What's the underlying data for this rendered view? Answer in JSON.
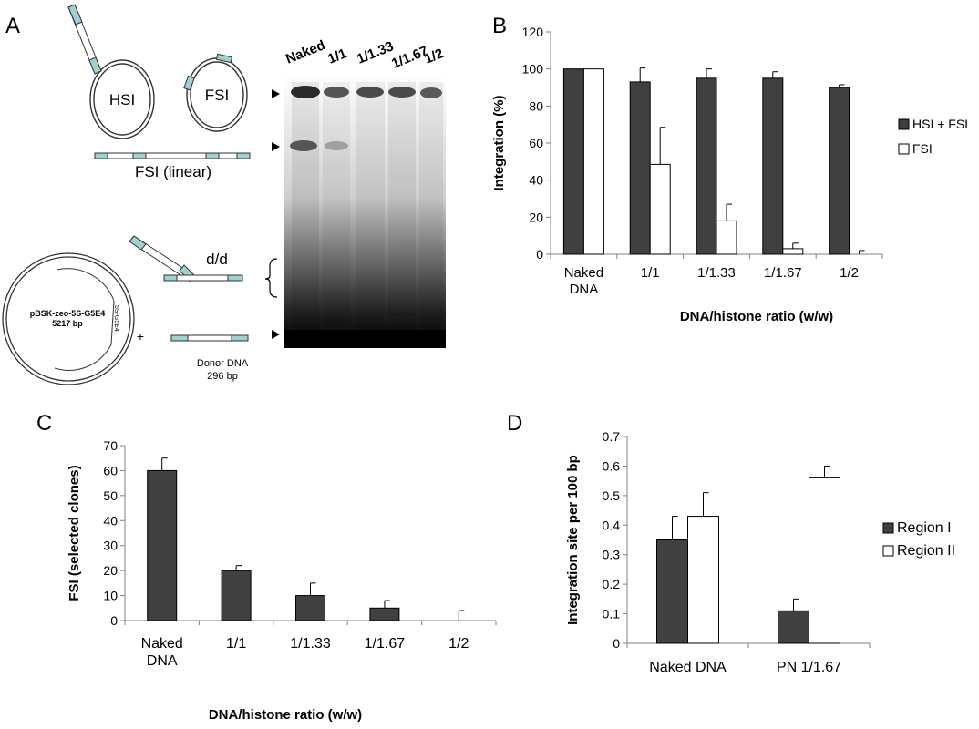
{
  "panels": {
    "a": "A",
    "b": "B",
    "c": "C",
    "d": "D"
  },
  "diagram": {
    "hsi": "HSI",
    "fsi": "FSI",
    "fsi_linear": "FSI  (linear)",
    "dd": "d/d",
    "plasmid_name": "pBSK-zeo-5S-G5E4",
    "plasmid_size": "5217 bp",
    "plasmid_insert": "5S-G5E4",
    "plus": "+",
    "donor_name": "Donor DNA",
    "donor_size": "296 bp"
  },
  "gel": {
    "lanes": [
      "Naked",
      "1/1",
      "1/1.33",
      "1/1.67",
      "1/2"
    ]
  },
  "chart_data": [
    {
      "id": "B",
      "type": "bar",
      "categories": [
        "Naked\nDNA",
        "1/1",
        "1/1.33",
        "1/1.67",
        "1/2"
      ],
      "series": [
        {
          "name": "HSI + FSI",
          "color": "#404040",
          "values": [
            100,
            93,
            95,
            95,
            90
          ],
          "errors": [
            0,
            7.5,
            5,
            3.5,
            1.5
          ]
        },
        {
          "name": "FSI",
          "color": "#ffffff",
          "values": [
            100,
            48.5,
            18,
            3,
            0
          ],
          "errors": [
            0,
            20,
            9,
            3,
            2
          ]
        }
      ],
      "xlabel": "DNA/histone ratio (w/w)",
      "ylabel": "Integration (%)",
      "ylim": [
        0,
        120
      ],
      "yticks": [
        0,
        20,
        40,
        60,
        80,
        100,
        120
      ],
      "legend": "right"
    },
    {
      "id": "C",
      "type": "bar",
      "categories": [
        "Naked\nDNA",
        "1/1",
        "1/1.33",
        "1/1.67",
        "1/2"
      ],
      "series": [
        {
          "color": "#404040",
          "values": [
            60,
            20,
            10,
            5,
            0
          ],
          "errors": [
            5,
            2,
            5,
            3,
            4
          ]
        }
      ],
      "xlabel": "DNA/histone ratio (w/w)",
      "ylabel": "FSI (selected clones)",
      "ylim": [
        0,
        70
      ],
      "yticks": [
        0,
        10,
        20,
        30,
        40,
        50,
        60,
        70
      ]
    },
    {
      "id": "D",
      "type": "bar",
      "categories": [
        "Naked DNA",
        "PN 1/1.67"
      ],
      "series": [
        {
          "name": "Region I",
          "color": "#404040",
          "values": [
            0.35,
            0.11
          ],
          "errors": [
            0.08,
            0.04
          ]
        },
        {
          "name": "Region II",
          "color": "#ffffff",
          "values": [
            0.43,
            0.56
          ],
          "errors": [
            0.08,
            0.04
          ]
        }
      ],
      "ylabel": "Integration site per 100 bp",
      "ylim": [
        0,
        0.7
      ],
      "yticks": [
        0,
        0.1,
        0.2,
        0.3,
        0.4,
        0.5,
        0.6,
        0.7
      ],
      "legend": "right"
    }
  ]
}
